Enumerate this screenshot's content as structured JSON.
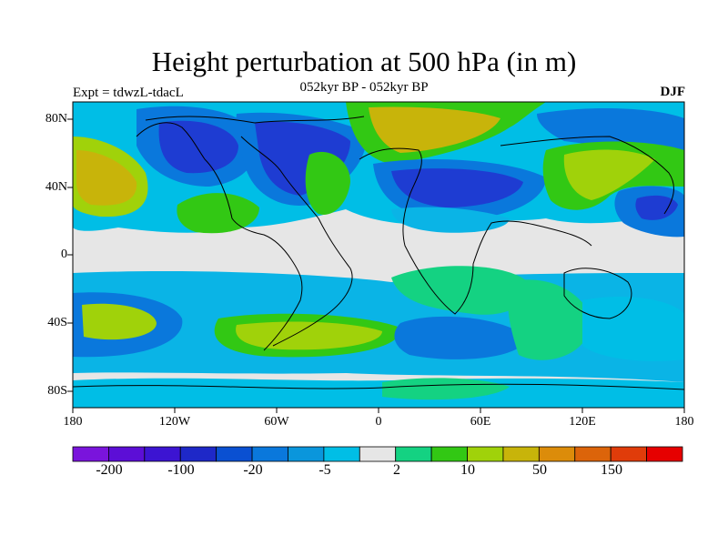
{
  "title": "Height perturbation at 500 hPa (in m)",
  "subtitle": "052kyr BP - 052kyr BP",
  "left_label": "Expt = tdwzL-tdacL",
  "right_label": "DJF",
  "lat_labels": [
    "80N",
    "40N",
    "0",
    "40S",
    "80S"
  ],
  "lon_labels": [
    "180",
    "120W",
    "60W",
    "0",
    "60E",
    "120E",
    "180"
  ],
  "colorbar": {
    "colors": [
      "#7a14dc",
      "#5c0ed6",
      "#3c14d2",
      "#1e28c8",
      "#0a50d2",
      "#0a78dc",
      "#0a96dc",
      "#00bee6",
      "#e6e6e6",
      "#14d282",
      "#32c814",
      "#a0d20a",
      "#c8b40a",
      "#dc8c0a",
      "#dc640a",
      "#e03c0a",
      "#e60000"
    ],
    "labels": [
      "-200",
      "-100",
      "-20",
      "-5",
      "2",
      "10",
      "50",
      "150"
    ]
  },
  "colors": {
    "neutral": "#e6e6e6",
    "dark_blue": "#1e3cd2",
    "mid_blue": "#0a78dc",
    "light_blue": "#00bee6",
    "cyan": "#0ab4e6",
    "green": "#14d282",
    "bright_green": "#32c814",
    "yellow_green": "#a0d20a",
    "mustard": "#c8b40a",
    "coastline": "#000000"
  }
}
